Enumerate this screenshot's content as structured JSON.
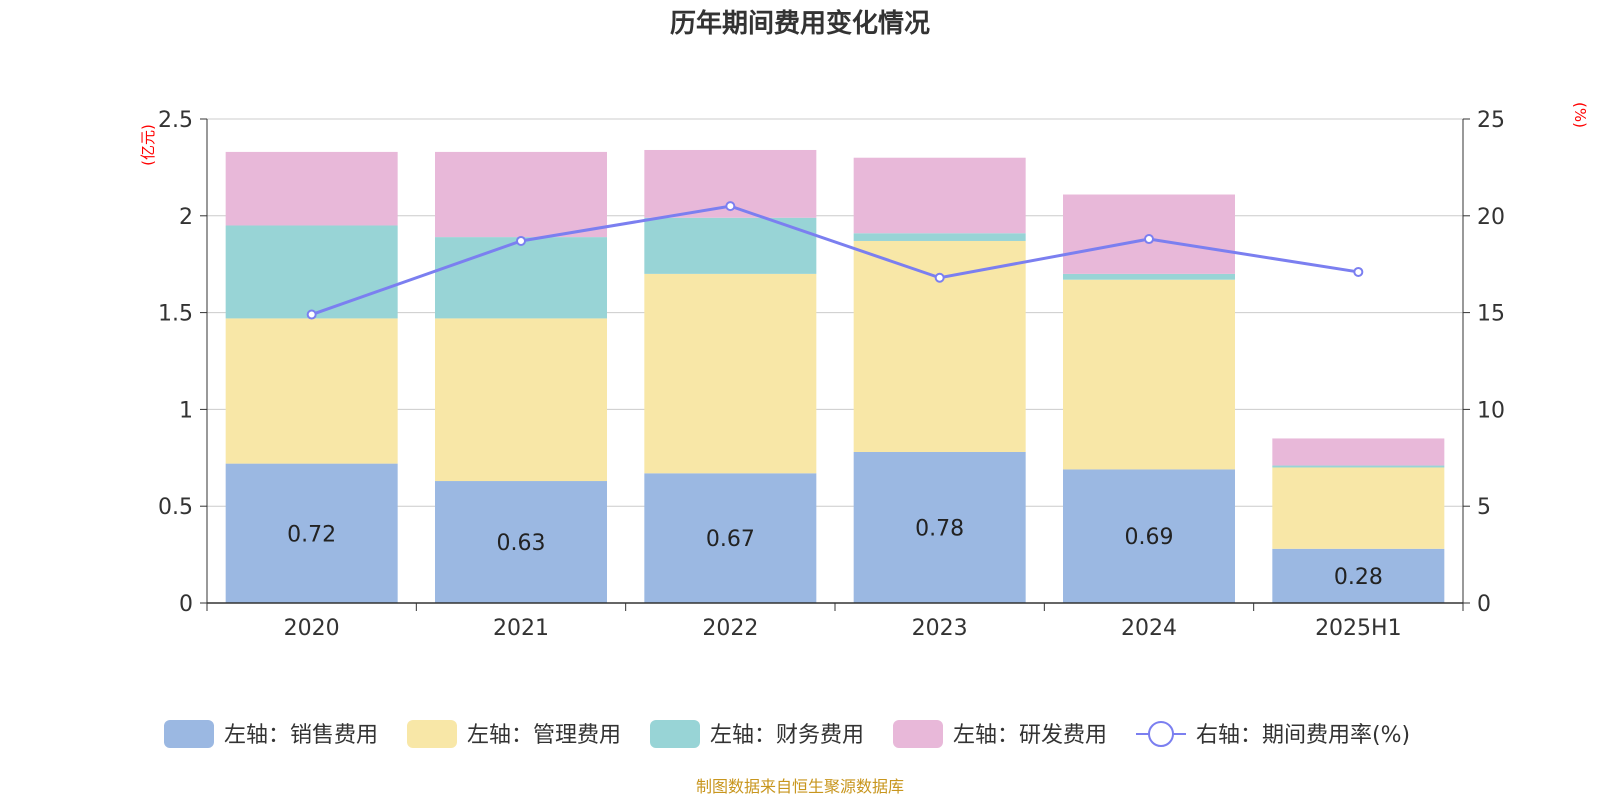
{
  "chart_data": {
    "type": "bar",
    "title": "历年期间费用变化情况",
    "categories": [
      "2020",
      "2021",
      "2022",
      "2023",
      "2024",
      "2025H1"
    ],
    "left_axis": {
      "unit": "(亿元)",
      "ylim": [
        0,
        2.5
      ],
      "ticks": [
        "0",
        "0.5",
        "1",
        "1.5",
        "2",
        "2.5"
      ],
      "tick_values": [
        0,
        0.5,
        1,
        1.5,
        2,
        2.5
      ]
    },
    "right_axis": {
      "unit": "(%)",
      "ylim": [
        0,
        25
      ],
      "ticks": [
        "0",
        "5",
        "10",
        "15",
        "20",
        "25"
      ],
      "tick_values": [
        0,
        5,
        10,
        15,
        20,
        25
      ]
    },
    "stacked": true,
    "grid": true,
    "legend_position": "bottom",
    "series": [
      {
        "name": "左轴：销售费用",
        "type": "bar",
        "axis": "left",
        "color": "#9bb8e2",
        "values": [
          0.72,
          0.63,
          0.67,
          0.78,
          0.69,
          0.28
        ],
        "labels": [
          "0.72",
          "0.63",
          "0.67",
          "0.78",
          "0.69",
          "0.28"
        ]
      },
      {
        "name": "左轴：管理费用",
        "type": "bar",
        "axis": "left",
        "color": "#f8e7a7",
        "values": [
          0.75,
          0.84,
          1.03,
          1.09,
          0.98,
          0.42
        ]
      },
      {
        "name": "左轴：财务费用",
        "type": "bar",
        "axis": "left",
        "color": "#98d4d6",
        "values": [
          0.48,
          0.42,
          0.29,
          0.04,
          0.03,
          0.01
        ]
      },
      {
        "name": "左轴：研发费用",
        "type": "bar",
        "axis": "left",
        "color": "#e8b8d9",
        "values": [
          0.38,
          0.44,
          0.35,
          0.39,
          0.41,
          0.14
        ]
      },
      {
        "name": "右轴：期间费用率(%)",
        "type": "line",
        "axis": "right",
        "color": "#7b7ff0",
        "values": [
          14.9,
          18.7,
          20.5,
          16.8,
          18.8,
          17.1
        ]
      }
    ]
  },
  "source_note": "制图数据来自恒生聚源数据库"
}
